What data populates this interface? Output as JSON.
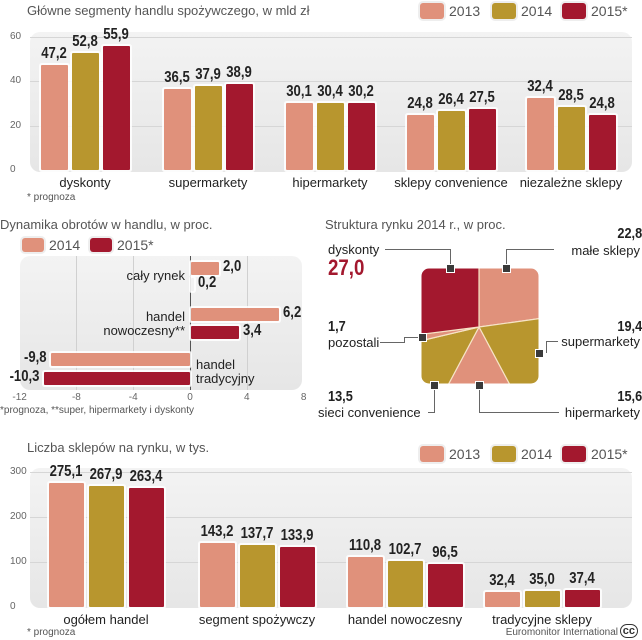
{
  "colors": {
    "c2013": "#e0917b",
    "c2014": "#b8962e",
    "c2015": "#a3182e",
    "zero_bar": "#f2f2f2"
  },
  "chart_data": [
    {
      "type": "bar",
      "title": "Główne segmenty handlu spożywczego, w mld zł",
      "categories": [
        "dyskonty",
        "supermarkety",
        "hipermarkety",
        "sklepy convenience",
        "niezależne sklepy"
      ],
      "series": [
        {
          "name": "2013",
          "values": [
            "47,2",
            "36,5",
            "30,1",
            "24,8",
            "32,4"
          ]
        },
        {
          "name": "2014",
          "values": [
            "52,8",
            "37,9",
            "30,4",
            "26,4",
            "28,5"
          ]
        },
        {
          "name": "2015*",
          "values": [
            "55,9",
            "38,9",
            "30,2",
            "27,5",
            "24,8"
          ]
        }
      ],
      "yticks": [
        "0",
        "20",
        "40",
        "60"
      ],
      "ylim": [
        0,
        60
      ],
      "grid": true,
      "legend": "top-right",
      "footnote": "* prognoza"
    },
    {
      "type": "bar",
      "orientation": "horizontal",
      "title": "Dynamika obrotów w handlu, w proc.",
      "categories": [
        "cały rynek",
        "handel nowoczesny**",
        "handel tradycyjny"
      ],
      "category_lines": [
        [
          "cały rynek"
        ],
        [
          "handel",
          "nowoczesny**"
        ],
        [
          "handel",
          "tradycyjny"
        ]
      ],
      "series": [
        {
          "name": "2014",
          "values": [
            "2,0",
            "6,2",
            "-9,8"
          ]
        },
        {
          "name": "2015*",
          "values": [
            "0,2",
            "3,4",
            "-10,3"
          ]
        }
      ],
      "xticks": [
        "-12",
        "-8",
        "-4",
        "0",
        "4",
        "8"
      ],
      "xlim": [
        -12,
        8
      ],
      "legend": "top-left",
      "footnote": "*prognoza, **super, hipermarkety i dyskonty"
    },
    {
      "type": "pie",
      "title": "Struktura rynku 2014 r., w proc.",
      "slices": [
        {
          "label": "małe sklepy",
          "value": "22,8"
        },
        {
          "label": "supermarkety",
          "value": "19,4"
        },
        {
          "label": "hipermarkety",
          "value": "15,6"
        },
        {
          "label": "sieci convenience",
          "value": "13,5"
        },
        {
          "label": "pozostali",
          "value": "1,7"
        },
        {
          "label": "dyskonty",
          "value": "27,0"
        }
      ],
      "highlight": "dyskonty"
    },
    {
      "type": "bar",
      "title": "Liczba sklepów na rynku, w tys.",
      "categories": [
        "ogółem handel",
        "segment spożywczy",
        "handel nowoczesny",
        "tradycyjne sklepy"
      ],
      "series": [
        {
          "name": "2013",
          "values": [
            "275,1",
            "143,2",
            "110,8",
            "32,4"
          ]
        },
        {
          "name": "2014",
          "values": [
            "267,9",
            "137,7",
            "102,7",
            "35,0"
          ]
        },
        {
          "name": "2015*",
          "values": [
            "263,4",
            "133,9",
            "96,5",
            "37,4"
          ]
        }
      ],
      "yticks": [
        "0",
        "100",
        "200",
        "300"
      ],
      "ylim": [
        0,
        300
      ],
      "grid": true,
      "legend": "top-right",
      "footnote": "* prognoza",
      "source": "Euromonitor International",
      "license_icon": "creative-commons-icon"
    }
  ]
}
